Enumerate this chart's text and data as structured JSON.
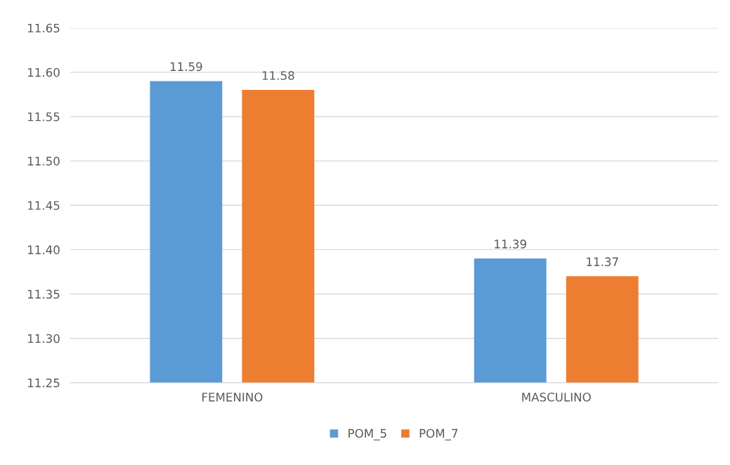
{
  "chart_data": {
    "type": "bar",
    "categories": [
      "FEMENINO",
      "MASCULINO"
    ],
    "series": [
      {
        "name": "POM_5",
        "color": "#5b9bd5",
        "values": [
          11.59,
          11.39
        ]
      },
      {
        "name": "POM_7",
        "color": "#ed7d31",
        "values": [
          11.58,
          11.37
        ]
      }
    ],
    "ylim": [
      11.25,
      11.65
    ],
    "yticks": [
      {
        "value": 11.25,
        "label": "11.25"
      },
      {
        "value": 11.3,
        "label": "11.30"
      },
      {
        "value": 11.35,
        "label": "11.35"
      },
      {
        "value": 11.4,
        "label": "11.40"
      },
      {
        "value": 11.45,
        "label": "11.45"
      },
      {
        "value": 11.5,
        "label": "11.50"
      },
      {
        "value": 11.55,
        "label": "11.55"
      },
      {
        "value": 11.6,
        "label": "11.60"
      },
      {
        "value": 11.65,
        "label": "11.65"
      }
    ],
    "grid": "y",
    "legend": "bottom",
    "data_labels": true
  }
}
